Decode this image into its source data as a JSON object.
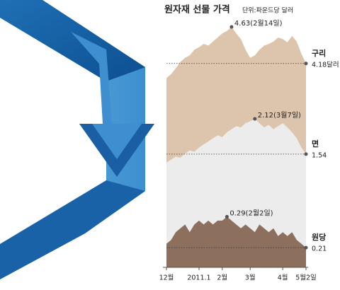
{
  "chart_data": {
    "type": "area",
    "title": "원자재 선물 가격",
    "subtitle": "단위:파운드당 달러",
    "categories": [
      "12월",
      null,
      null,
      null,
      null,
      null,
      null,
      "2011.1",
      null,
      null,
      null,
      null,
      "2월",
      null,
      null,
      null,
      null,
      null,
      "3월",
      null,
      null,
      null,
      null,
      null,
      null,
      "4월",
      null,
      null,
      null,
      null,
      "5월2일"
    ],
    "series": [
      {
        "name": "구리",
        "color": "#dcc4ad",
        "ylim": [
          3.83,
          4.7
        ],
        "values": [
          4.0,
          4.05,
          4.12,
          4.2,
          4.25,
          4.28,
          4.35,
          4.38,
          4.42,
          4.4,
          4.45,
          4.5,
          4.55,
          4.58,
          4.63,
          4.55,
          4.48,
          4.35,
          4.25,
          4.28,
          4.35,
          4.4,
          4.42,
          4.45,
          4.5,
          4.48,
          4.44,
          4.52,
          4.45,
          4.3,
          4.18
        ],
        "value_labels": [
          null,
          null,
          null,
          null,
          null,
          null,
          null,
          null,
          null,
          null,
          null,
          null,
          null,
          null,
          "4.63(2월14일)",
          null,
          null,
          null,
          null,
          null,
          null,
          null,
          null,
          null,
          null,
          null,
          null,
          null,
          null,
          null,
          "4.18달러"
        ]
      },
      {
        "name": "면",
        "color": "#ececec",
        "ylim": [
          1.05,
          2.33
        ],
        "values": [
          1.4,
          1.45,
          1.5,
          1.48,
          1.55,
          1.6,
          1.58,
          1.65,
          1.7,
          1.75,
          1.8,
          1.85,
          1.82,
          1.9,
          1.95,
          2.0,
          1.98,
          2.05,
          2.08,
          2.12,
          2.05,
          1.98,
          2.02,
          1.95,
          2.0,
          2.05,
          1.98,
          1.9,
          1.8,
          1.65,
          1.54
        ],
        "value_labels": [
          null,
          null,
          null,
          null,
          null,
          null,
          null,
          null,
          null,
          null,
          null,
          null,
          null,
          null,
          null,
          null,
          null,
          null,
          null,
          "2.12(3월7일)",
          null,
          null,
          null,
          null,
          null,
          null,
          null,
          null,
          null,
          null,
          "1.54"
        ]
      },
      {
        "name": "원당",
        "color": "#8c6f5c",
        "ylim": [
          0.17,
          0.32
        ],
        "values": [
          0.22,
          0.23,
          0.25,
          0.26,
          0.27,
          0.25,
          0.27,
          0.28,
          0.27,
          0.28,
          0.27,
          0.28,
          0.28,
          0.29,
          0.28,
          0.27,
          0.26,
          0.27,
          0.26,
          0.25,
          0.27,
          0.26,
          0.25,
          0.26,
          0.24,
          0.25,
          0.24,
          0.25,
          0.23,
          0.22,
          0.21
        ],
        "value_labels": [
          null,
          null,
          null,
          null,
          null,
          null,
          null,
          null,
          null,
          null,
          null,
          null,
          null,
          "0.29(2월2일)",
          null,
          null,
          null,
          null,
          null,
          null,
          null,
          null,
          null,
          null,
          null,
          null,
          null,
          null,
          null,
          null,
          "0.21"
        ]
      }
    ]
  }
}
